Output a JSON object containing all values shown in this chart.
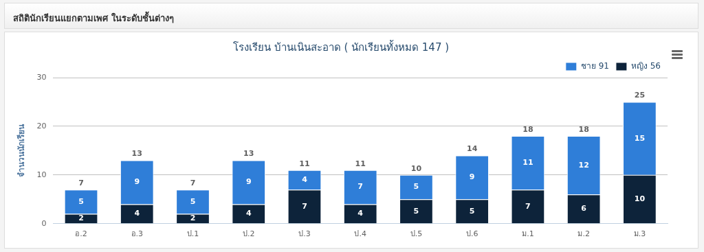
{
  "chart_data": {
    "type": "bar",
    "title": "โรงเรียน บ้านเนินสะอาด ( นักเรียนทั้งหมด 147 )",
    "ylabel": "จำนวนนักเรียน",
    "annotations": [
      "สถิตินักเรียนแยกตามเพศ ในระดับชั้นต่างๆ"
    ],
    "categories": [
      "อ.2",
      "อ.3",
      "ป.1",
      "ป.2",
      "ป.3",
      "ป.4",
      "ป.5",
      "ป.6",
      "ม.1",
      "ม.2",
      "ม.3"
    ],
    "series": [
      {
        "name": "หญิง 56",
        "color": "#0d233a",
        "values": [
          2,
          4,
          2,
          4,
          7,
          4,
          5,
          5,
          7,
          6,
          10
        ]
      },
      {
        "name": "ชาย 91",
        "color": "#2f7ed8",
        "values": [
          5,
          9,
          5,
          9,
          4,
          7,
          5,
          9,
          11,
          12,
          15
        ]
      }
    ],
    "stacked": true,
    "data_labels": true,
    "totals": [
      "7",
      "13",
      "7",
      "13",
      "11",
      "11",
      "10",
      "14",
      "18",
      "18",
      "25"
    ],
    "ylim": [
      0,
      30
    ],
    "yticks": [
      0,
      10,
      20,
      30
    ],
    "grid": "y",
    "legend": "top right"
  }
}
